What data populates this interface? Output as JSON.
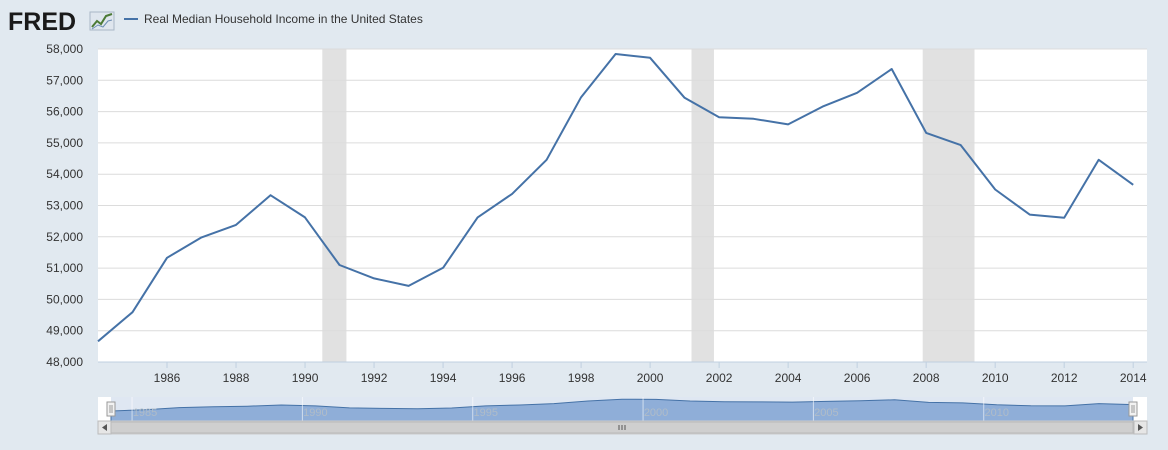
{
  "brand": {
    "name": "FRED",
    "logo_icon": "line-chart-icon"
  },
  "colors": {
    "line": "#4572a7",
    "recession": "#e1e1e1",
    "background": "#e1e9f0",
    "plot_bg": "#ffffff",
    "navigator_fill": "#8faed8"
  },
  "chart_data": {
    "type": "line",
    "legend": "Real Median Household Income in the United States",
    "title": "",
    "xlabel": "",
    "ylabel": "",
    "xlim": [
      1984,
      2014.4
    ],
    "ylim": [
      48000,
      58000
    ],
    "grid": true,
    "legend_position": "top-left",
    "x_ticks": [
      "1986",
      "1988",
      "1990",
      "1992",
      "1994",
      "1996",
      "1998",
      "2000",
      "2002",
      "2004",
      "2006",
      "2008",
      "2010",
      "2012",
      "2014"
    ],
    "y_ticks": [
      "48,000",
      "49,000",
      "50,000",
      "51,000",
      "52,000",
      "53,000",
      "54,000",
      "55,000",
      "56,000",
      "57,000",
      "58,000"
    ],
    "series": [
      {
        "name": "Real Median Household Income in the United States",
        "x": [
          1984,
          1985,
          1986,
          1987,
          1988,
          1989,
          1990,
          1991,
          1992,
          1993,
          1994,
          1995,
          1996,
          1997,
          1998,
          1999,
          2000,
          2001,
          2002,
          2003,
          2004,
          2005,
          2006,
          2007,
          2008,
          2009,
          2010,
          2011,
          2012,
          2013,
          2014
        ],
        "y": [
          48660,
          49590,
          51330,
          51980,
          52380,
          53330,
          52620,
          51100,
          50670,
          50430,
          51010,
          52620,
          53370,
          54460,
          56460,
          57840,
          57720,
          56440,
          55820,
          55770,
          55590,
          56160,
          56600,
          57360,
          55320,
          54930,
          53510,
          52710,
          52610,
          54460,
          53660
        ]
      }
    ],
    "recessions": [
      [
        1990.5,
        1991.2
      ],
      [
        2001.2,
        2001.85
      ],
      [
        2007.9,
        2009.4
      ]
    ],
    "navigator": {
      "x_ticks": [
        "1985",
        "1990",
        "1995",
        "2000",
        "2005",
        "2010"
      ]
    }
  }
}
